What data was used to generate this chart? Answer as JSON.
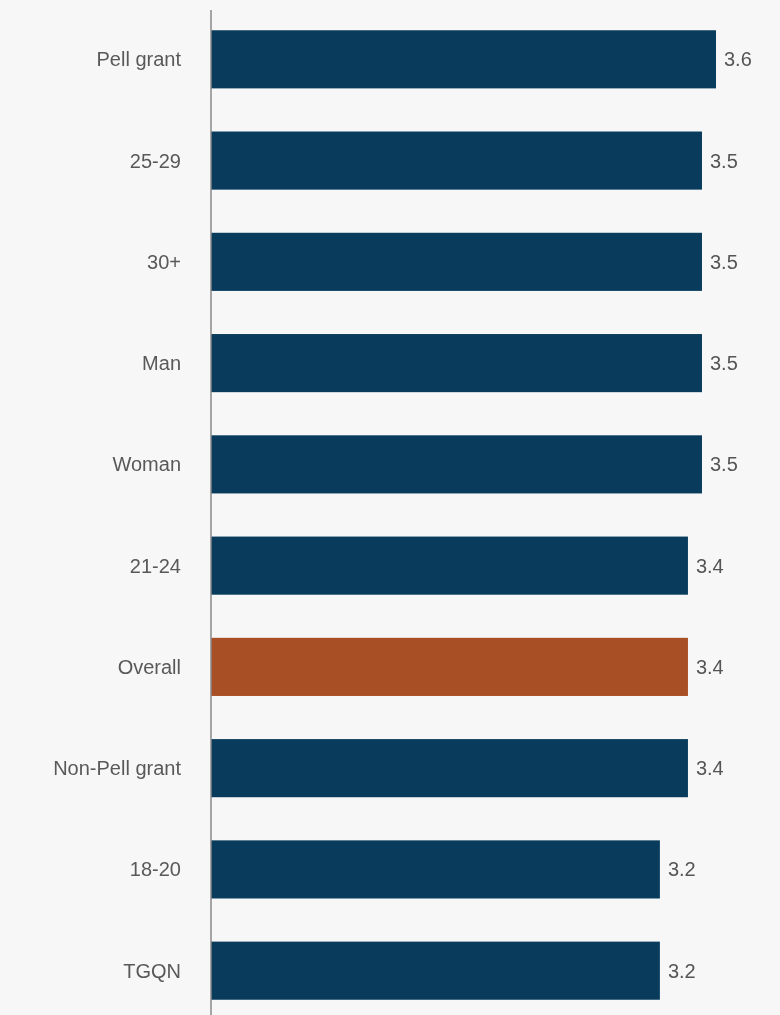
{
  "chart_data": {
    "type": "bar",
    "orientation": "horizontal",
    "categories": [
      "Pell grant",
      "25-29",
      "30+",
      "Man",
      "Woman",
      "21-24",
      "Overall",
      "Non-Pell grant",
      "18-20",
      "TGQN"
    ],
    "values": [
      3.6,
      3.5,
      3.5,
      3.5,
      3.5,
      3.4,
      3.4,
      3.4,
      3.2,
      3.2
    ],
    "colors": [
      "#083b5c",
      "#083b5c",
      "#083b5c",
      "#083b5c",
      "#083b5c",
      "#083b5c",
      "#a94f25",
      "#083b5c",
      "#083b5c",
      "#083b5c"
    ],
    "data_labels": true
  }
}
